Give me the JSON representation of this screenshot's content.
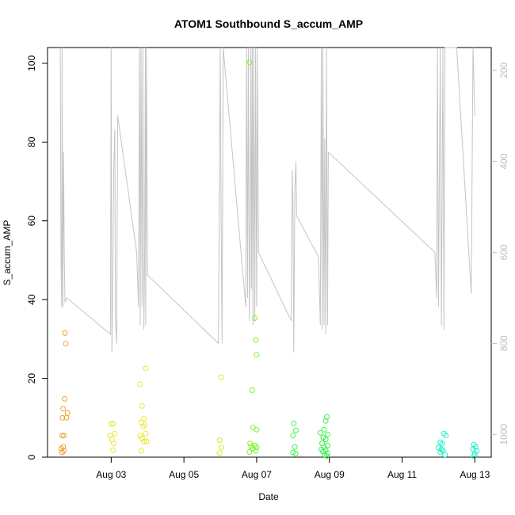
{
  "chart_data": {
    "type": "scatter",
    "title": "ATOM1 Southbound S_accum_AMP",
    "xlabel": "Date",
    "ylabel": "S_accum_AMP",
    "ylim": [
      0,
      104
    ],
    "y_ticks": [
      0,
      20,
      40,
      60,
      80,
      100
    ],
    "x_range_days": [
      1.25,
      13.45
    ],
    "x_ticks": [
      {
        "day": 3,
        "label": "Aug 03"
      },
      {
        "day": 5,
        "label": "Aug 05"
      },
      {
        "day": 7,
        "label": "Aug 07"
      },
      {
        "day": 9,
        "label": "Aug 09"
      },
      {
        "day": 11,
        "label": "Aug 11"
      },
      {
        "day": 13,
        "label": "Aug 13"
      }
    ],
    "y2_range_inverted": [
      1050,
      150
    ],
    "y2_ticks": [
      200,
      400,
      600,
      800,
      1000
    ],
    "series": [
      {
        "color": "#f0a030",
        "points": [
          [
            1.73,
            31.5
          ],
          [
            1.75,
            28.8
          ],
          [
            1.72,
            14.8
          ],
          [
            1.68,
            12.3
          ],
          [
            1.8,
            11.2
          ],
          [
            1.66,
            10
          ],
          [
            1.77,
            10
          ],
          [
            1.7,
            5.5
          ],
          [
            1.65,
            5.5
          ],
          [
            1.68,
            2.6
          ],
          [
            1.63,
            2.2
          ],
          [
            1.7,
            1.6
          ],
          [
            1.65,
            1.2
          ]
        ]
      },
      {
        "color": "#e8e830",
        "points": [
          [
            3,
            8.4
          ],
          [
            3.05,
            8.5
          ],
          [
            3.1,
            6
          ],
          [
            2.97,
            5.5
          ],
          [
            3.02,
            4.5
          ],
          [
            3.07,
            3.5
          ],
          [
            3.05,
            1.8
          ],
          [
            3.8,
            18.5
          ],
          [
            3.95,
            22.5
          ],
          [
            3.85,
            13
          ],
          [
            3.9,
            9.8
          ],
          [
            3.82,
            8.8
          ],
          [
            3.93,
            8.2
          ],
          [
            3.88,
            7.8
          ],
          [
            3.95,
            6
          ],
          [
            3.8,
            5.5
          ],
          [
            3.85,
            4.8
          ],
          [
            3.9,
            4
          ],
          [
            3.97,
            4
          ],
          [
            3.83,
            1.6
          ]
        ]
      },
      {
        "color": "#c8f030",
        "points": [
          [
            6.02,
            20.3
          ],
          [
            5.98,
            4.3
          ],
          [
            6.03,
            2.5
          ],
          [
            5.98,
            1
          ]
        ]
      },
      {
        "color": "#80f030",
        "points": [
          [
            6.8,
            100.2
          ],
          [
            6.95,
            35.3
          ],
          [
            6.98,
            29.8
          ],
          [
            7,
            26
          ],
          [
            6.88,
            17
          ],
          [
            6.9,
            7.5
          ],
          [
            7,
            7
          ],
          [
            6.82,
            3.5
          ],
          [
            6.95,
            3
          ],
          [
            6.85,
            2.8
          ],
          [
            7,
            2.5
          ],
          [
            6.9,
            2.2
          ],
          [
            6.97,
            1.6
          ],
          [
            6.8,
            1.3
          ]
        ]
      },
      {
        "color": "#40f050",
        "points": [
          [
            8.02,
            8.6
          ],
          [
            8.08,
            6.8
          ],
          [
            8.0,
            5.5
          ],
          [
            8.05,
            2.6
          ],
          [
            8.0,
            1.2
          ],
          [
            8.07,
            0.9
          ],
          [
            8.93,
            10.2
          ],
          [
            8.9,
            9.2
          ],
          [
            8.85,
            7
          ],
          [
            8.75,
            6.2
          ],
          [
            8.95,
            5.8
          ],
          [
            8.83,
            5
          ],
          [
            8.9,
            4.5
          ],
          [
            8.8,
            3.5
          ],
          [
            8.95,
            3
          ],
          [
            8.85,
            2.5
          ],
          [
            8.78,
            2
          ],
          [
            8.9,
            1.8
          ],
          [
            8.82,
            1.4
          ],
          [
            8.95,
            1
          ],
          [
            8.87,
            0.6
          ],
          [
            8.93,
            0.3
          ]
        ]
      },
      {
        "color": "#20f0c8",
        "points": [
          [
            12.05,
            3.8
          ],
          [
            12.1,
            3.4
          ],
          [
            12.15,
            6
          ],
          [
            12.2,
            5.5
          ],
          [
            12.0,
            2.4
          ],
          [
            12.08,
            2
          ],
          [
            12.12,
            1.6
          ],
          [
            12.05,
            1.2
          ],
          [
            12.18,
            0.6
          ],
          [
            12.97,
            3.2
          ],
          [
            13.02,
            2.6
          ],
          [
            12.95,
            2
          ],
          [
            13.05,
            1.6
          ],
          [
            13.0,
            0.8
          ],
          [
            12.97,
            0.3
          ]
        ]
      }
    ],
    "secondary_series": {
      "color": "#c4c4c4",
      "y_axis": "right",
      "points": [
        [
          1.6,
          150
        ],
        [
          1.62,
          620
        ],
        [
          1.64,
          720
        ],
        [
          1.65,
          150
        ],
        [
          1.67,
          720
        ],
        [
          1.69,
          380
        ],
        [
          1.71,
          600
        ],
        [
          1.73,
          710
        ],
        [
          1.78,
          700
        ],
        [
          2.98,
          780
        ],
        [
          3.0,
          150
        ],
        [
          3.02,
          820
        ],
        [
          3.05,
          650
        ],
        [
          3.07,
          420
        ],
        [
          3.1,
          330
        ],
        [
          3.12,
          750
        ],
        [
          3.15,
          800
        ],
        [
          3.18,
          300
        ],
        [
          3.7,
          600
        ],
        [
          3.75,
          720
        ],
        [
          3.78,
          150
        ],
        [
          3.8,
          760
        ],
        [
          3.82,
          150
        ],
        [
          3.85,
          720
        ],
        [
          3.87,
          150
        ],
        [
          3.9,
          770
        ],
        [
          3.92,
          600
        ],
        [
          3.94,
          150
        ],
        [
          3.95,
          760
        ],
        [
          3.97,
          150
        ],
        [
          4.0,
          650
        ],
        [
          5.95,
          800
        ],
        [
          5.97,
          510
        ],
        [
          6.0,
          150
        ],
        [
          6.02,
          500
        ],
        [
          6.05,
          800
        ],
        [
          6.08,
          150
        ],
        [
          6.7,
          720
        ],
        [
          6.72,
          150
        ],
        [
          6.75,
          700
        ],
        [
          6.77,
          150
        ],
        [
          6.8,
          750
        ],
        [
          6.82,
          600
        ],
        [
          6.84,
          150
        ],
        [
          6.86,
          680
        ],
        [
          6.88,
          150
        ],
        [
          6.9,
          760
        ],
        [
          6.92,
          150
        ],
        [
          6.95,
          750
        ],
        [
          6.97,
          150
        ],
        [
          7.0,
          720
        ],
        [
          7.02,
          150
        ],
        [
          7.05,
          600
        ],
        [
          7.95,
          750
        ],
        [
          7.98,
          420
        ],
        [
          8.0,
          500
        ],
        [
          8.02,
          820
        ],
        [
          8.05,
          460
        ],
        [
          8.08,
          400
        ],
        [
          8.1,
          520
        ],
        [
          8.7,
          610
        ],
        [
          8.75,
          760
        ],
        [
          8.78,
          150
        ],
        [
          8.8,
          770
        ],
        [
          8.82,
          150
        ],
        [
          8.85,
          760
        ],
        [
          8.87,
          350
        ],
        [
          8.9,
          780
        ],
        [
          8.92,
          150
        ],
        [
          8.95,
          760
        ],
        [
          8.97,
          380
        ],
        [
          11.9,
          600
        ],
        [
          11.95,
          700
        ],
        [
          11.97,
          150
        ],
        [
          12.0,
          720
        ],
        [
          12.05,
          150
        ],
        [
          12.08,
          760
        ],
        [
          12.12,
          150
        ],
        [
          12.15,
          770
        ],
        [
          12.18,
          150
        ],
        [
          12.5,
          150
        ],
        [
          12.9,
          690
        ],
        [
          12.95,
          150
        ],
        [
          13.0,
          300
        ]
      ]
    }
  }
}
